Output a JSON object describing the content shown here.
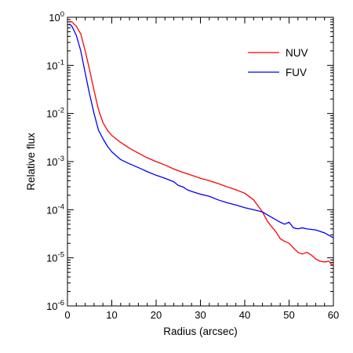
{
  "chart_data": {
    "type": "line",
    "title": "",
    "xlabel": "Radius (arcsec)",
    "ylabel": "Relative flux",
    "xlim": [
      0,
      60
    ],
    "ylim": [
      1e-06,
      1
    ],
    "yscale": "log",
    "grid": false,
    "legend_position": "top-right",
    "x_ticks": [
      {
        "value": 0,
        "label": "0"
      },
      {
        "value": 10,
        "label": "10"
      },
      {
        "value": 20,
        "label": "20"
      },
      {
        "value": 30,
        "label": "30"
      },
      {
        "value": 40,
        "label": "40"
      },
      {
        "value": 50,
        "label": "50"
      },
      {
        "value": 60,
        "label": "60"
      }
    ],
    "y_ticks": [
      {
        "exp": 0,
        "mantissa": "10",
        "power": "0",
        "single": "1"
      },
      {
        "exp": -1,
        "mantissa": "10",
        "power": "-1"
      },
      {
        "exp": -2,
        "mantissa": "10",
        "power": "-2"
      },
      {
        "exp": -3,
        "mantissa": "10",
        "power": "-3"
      },
      {
        "exp": -4,
        "mantissa": "10",
        "power": "-4"
      },
      {
        "exp": -5,
        "mantissa": "10",
        "power": "-5"
      },
      {
        "exp": -6,
        "mantissa": "10",
        "power": "-6"
      }
    ],
    "series": [
      {
        "name": "NUV",
        "color": "#ff0000",
        "points": [
          [
            0.5,
            0.82
          ],
          [
            1,
            0.8
          ],
          [
            2,
            0.65
          ],
          [
            3,
            0.45
          ],
          [
            4,
            0.2
          ],
          [
            5,
            0.08
          ],
          [
            6,
            0.03
          ],
          [
            7,
            0.012
          ],
          [
            8,
            0.0065
          ],
          [
            9,
            0.0045
          ],
          [
            10,
            0.0035
          ],
          [
            12,
            0.0025
          ],
          [
            14,
            0.0019
          ],
          [
            16,
            0.0015
          ],
          [
            18,
            0.0012
          ],
          [
            20,
            0.001
          ],
          [
            22,
            0.00085
          ],
          [
            24,
            0.0007
          ],
          [
            26,
            0.0006
          ],
          [
            28,
            0.00052
          ],
          [
            30,
            0.00045
          ],
          [
            32,
            0.0004
          ],
          [
            34,
            0.00035
          ],
          [
            36,
            0.0003
          ],
          [
            38,
            0.00026
          ],
          [
            40,
            0.00022
          ],
          [
            42,
            0.00016
          ],
          [
            43,
            0.00012
          ],
          [
            44,
            9e-05
          ],
          [
            45,
            6e-05
          ],
          [
            46,
            4.5e-05
          ],
          [
            47,
            3.5e-05
          ],
          [
            48,
            2.5e-05
          ],
          [
            49,
            2.2e-05
          ],
          [
            50,
            2e-05
          ],
          [
            51,
            1.6e-05
          ],
          [
            52,
            1.3e-05
          ],
          [
            53,
            1.2e-05
          ],
          [
            54,
            1.3e-05
          ],
          [
            55,
            1.15e-05
          ],
          [
            56,
            9.5e-06
          ],
          [
            57,
            8.5e-06
          ],
          [
            58,
            8.2e-06
          ],
          [
            59,
            8.5e-06
          ],
          [
            59.5,
            7.5e-06
          ],
          [
            60,
            7e-06
          ]
        ]
      },
      {
        "name": "FUV",
        "color": "#0000ff",
        "points": [
          [
            0.5,
            0.72
          ],
          [
            1,
            0.65
          ],
          [
            2,
            0.42
          ],
          [
            3,
            0.2
          ],
          [
            4,
            0.07
          ],
          [
            5,
            0.025
          ],
          [
            6,
            0.01
          ],
          [
            7,
            0.0045
          ],
          [
            8,
            0.003
          ],
          [
            9,
            0.0021
          ],
          [
            10,
            0.0016
          ],
          [
            12,
            0.0011
          ],
          [
            14,
            0.0009
          ],
          [
            16,
            0.00075
          ],
          [
            18,
            0.00062
          ],
          [
            20,
            0.00052
          ],
          [
            22,
            0.00045
          ],
          [
            24,
            0.00038
          ],
          [
            25,
            0.00032
          ],
          [
            26,
            0.0003
          ],
          [
            27,
            0.00026
          ],
          [
            28,
            0.00024
          ],
          [
            30,
            0.00021
          ],
          [
            32,
            0.00019
          ],
          [
            34,
            0.00016
          ],
          [
            36,
            0.00014
          ],
          [
            38,
            0.000125
          ],
          [
            40,
            0.00011
          ],
          [
            42,
            0.0001
          ],
          [
            44,
            9e-05
          ],
          [
            46,
            7e-05
          ],
          [
            48,
            5.5e-05
          ],
          [
            49,
            5e-05
          ],
          [
            50,
            5.5e-05
          ],
          [
            51,
            4.2e-05
          ],
          [
            52,
            4e-05
          ],
          [
            53,
            4.2e-05
          ],
          [
            54,
            4e-05
          ],
          [
            56,
            3.8e-05
          ],
          [
            58,
            3.3e-05
          ],
          [
            60,
            2.6e-05
          ]
        ]
      }
    ]
  }
}
